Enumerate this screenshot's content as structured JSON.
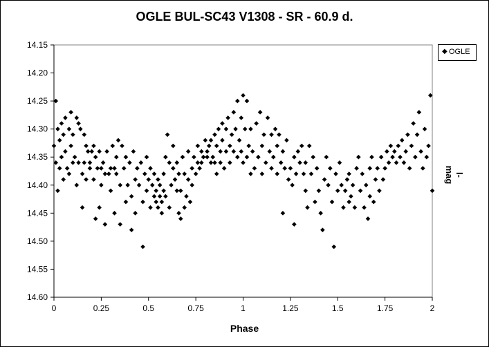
{
  "chart_data": {
    "type": "scatter",
    "title": "OGLE BUL-SC43  V1308 - SR - 60.9 d.",
    "xlabel": "Phase",
    "ylabel": "I-mag",
    "xlim": [
      0,
      2
    ],
    "ylim": [
      14.15,
      14.6
    ],
    "y_inverted": true,
    "xticks": [
      "0",
      "0.25",
      "0.5",
      "0.75",
      "1",
      "1.25",
      "1.5",
      "1.75",
      "2"
    ],
    "yticks": [
      "14.15",
      "14.20",
      "14.25",
      "14.30",
      "14.35",
      "14.40",
      "14.45",
      "14.50",
      "14.55",
      "14.60"
    ],
    "grid": false,
    "legend_position": "top-right",
    "series": [
      {
        "name": "OGLE",
        "marker": "diamond",
        "color": "#000000",
        "points": [
          [
            0.0,
            14.33
          ],
          [
            0.01,
            14.25
          ],
          [
            0.01,
            14.36
          ],
          [
            0.02,
            14.3
          ],
          [
            0.02,
            14.41
          ],
          [
            0.03,
            14.32
          ],
          [
            0.03,
            14.37
          ],
          [
            0.04,
            14.29
          ],
          [
            0.04,
            14.35
          ],
          [
            0.05,
            14.31
          ],
          [
            0.05,
            14.39
          ],
          [
            0.06,
            14.28
          ],
          [
            0.06,
            14.34
          ],
          [
            0.07,
            14.37
          ],
          [
            0.08,
            14.3
          ],
          [
            0.08,
            14.38
          ],
          [
            0.09,
            14.27
          ],
          [
            0.09,
            14.33
          ],
          [
            0.1,
            14.36
          ],
          [
            0.1,
            14.31
          ],
          [
            0.11,
            14.35
          ],
          [
            0.12,
            14.28
          ],
          [
            0.12,
            14.4
          ],
          [
            0.13,
            14.29
          ],
          [
            0.13,
            14.36
          ],
          [
            0.14,
            14.3
          ],
          [
            0.15,
            14.38
          ],
          [
            0.15,
            14.44
          ],
          [
            0.16,
            14.31
          ],
          [
            0.16,
            14.36
          ],
          [
            0.17,
            14.33
          ],
          [
            0.17,
            14.39
          ],
          [
            0.18,
            14.34
          ],
          [
            0.19,
            14.36
          ],
          [
            0.19,
            14.37
          ],
          [
            0.2,
            14.34
          ],
          [
            0.21,
            14.33
          ],
          [
            0.21,
            14.39
          ],
          [
            0.22,
            14.35
          ],
          [
            0.22,
            14.46
          ],
          [
            0.23,
            14.37
          ],
          [
            0.24,
            14.34
          ],
          [
            0.24,
            14.44
          ],
          [
            0.25,
            14.37
          ],
          [
            0.25,
            14.4
          ],
          [
            0.26,
            14.36
          ],
          [
            0.27,
            14.47
          ],
          [
            0.27,
            14.38
          ],
          [
            0.28,
            14.34
          ],
          [
            0.29,
            14.38
          ],
          [
            0.3,
            14.37
          ],
          [
            0.3,
            14.41
          ],
          [
            0.31,
            14.33
          ],
          [
            0.32,
            14.45
          ],
          [
            0.32,
            14.37
          ],
          [
            0.33,
            14.35
          ],
          [
            0.33,
            14.38
          ],
          [
            0.34,
            14.32
          ],
          [
            0.35,
            14.4
          ],
          [
            0.35,
            14.47
          ],
          [
            0.36,
            14.33
          ],
          [
            0.37,
            14.37
          ],
          [
            0.38,
            14.43
          ],
          [
            0.38,
            14.35
          ],
          [
            0.39,
            14.4
          ],
          [
            0.4,
            14.36
          ],
          [
            0.41,
            14.42
          ],
          [
            0.41,
            14.48
          ],
          [
            0.42,
            14.34
          ],
          [
            0.43,
            14.39
          ],
          [
            0.43,
            14.45
          ],
          [
            0.44,
            14.37
          ],
          [
            0.45,
            14.4
          ],
          [
            0.46,
            14.36
          ],
          [
            0.47,
            14.43
          ],
          [
            0.47,
            14.51
          ],
          [
            0.48,
            14.38
          ],
          [
            0.49,
            14.41
          ],
          [
            0.49,
            14.35
          ],
          [
            0.5,
            14.39
          ],
          [
            0.51,
            14.44
          ],
          [
            0.51,
            14.37
          ],
          [
            0.52,
            14.4
          ],
          [
            0.53,
            14.42
          ],
          [
            0.53,
            14.38
          ],
          [
            0.54,
            14.43
          ],
          [
            0.54,
            14.41
          ],
          [
            0.55,
            14.39
          ],
          [
            0.55,
            14.44
          ],
          [
            0.56,
            14.42
          ],
          [
            0.56,
            14.4
          ],
          [
            0.57,
            14.45
          ],
          [
            0.57,
            14.43
          ],
          [
            0.58,
            14.41
          ],
          [
            0.58,
            14.38
          ],
          [
            0.59,
            14.35
          ],
          [
            0.59,
            14.42
          ],
          [
            0.6,
            14.31
          ],
          [
            0.61,
            14.36
          ],
          [
            0.61,
            14.44
          ],
          [
            0.62,
            14.4
          ],
          [
            0.63,
            14.37
          ],
          [
            0.63,
            14.33
          ],
          [
            0.64,
            14.39
          ],
          [
            0.65,
            14.41
          ],
          [
            0.65,
            14.36
          ],
          [
            0.66,
            14.45
          ],
          [
            0.66,
            14.38
          ],
          [
            0.67,
            14.46
          ],
          [
            0.67,
            14.41
          ],
          [
            0.68,
            14.35
          ],
          [
            0.69,
            14.44
          ],
          [
            0.69,
            14.38
          ],
          [
            0.7,
            14.42
          ],
          [
            0.71,
            14.39
          ],
          [
            0.71,
            14.34
          ],
          [
            0.72,
            14.43
          ],
          [
            0.73,
            14.37
          ],
          [
            0.73,
            14.4
          ],
          [
            0.74,
            14.35
          ],
          [
            0.75,
            14.38
          ],
          [
            0.76,
            14.36
          ],
          [
            0.76,
            14.33
          ],
          [
            0.77,
            14.37
          ],
          [
            0.78,
            14.34
          ],
          [
            0.78,
            14.36
          ],
          [
            0.79,
            14.35
          ],
          [
            0.8,
            14.32
          ],
          [
            0.81,
            14.34
          ],
          [
            0.81,
            14.35
          ],
          [
            0.82,
            14.33
          ],
          [
            0.83,
            14.36
          ],
          [
            0.83,
            14.32
          ],
          [
            0.84,
            14.35
          ],
          [
            0.85,
            14.31
          ],
          [
            0.85,
            14.36
          ],
          [
            0.86,
            14.33
          ],
          [
            0.86,
            14.38
          ],
          [
            0.87,
            14.3
          ],
          [
            0.88,
            14.34
          ],
          [
            0.88,
            14.36
          ],
          [
            0.89,
            14.29
          ],
          [
            0.89,
            14.32
          ],
          [
            0.9,
            14.37
          ],
          [
            0.91,
            14.3
          ],
          [
            0.91,
            14.34
          ],
          [
            0.92,
            14.28
          ],
          [
            0.93,
            14.33
          ],
          [
            0.93,
            14.36
          ],
          [
            0.94,
            14.31
          ],
          [
            0.95,
            14.27
          ],
          [
            0.95,
            14.34
          ],
          [
            0.96,
            14.3
          ],
          [
            0.97,
            14.35
          ],
          [
            0.97,
            14.25
          ],
          [
            0.98,
            14.32
          ],
          [
            0.99,
            14.34
          ],
          [
            0.99,
            14.28
          ],
          [
            1.0,
            14.24
          ],
          [
            1.0,
            14.36
          ],
          [
            1.01,
            14.3
          ],
          [
            1.02,
            14.35
          ],
          [
            1.02,
            14.25
          ],
          [
            1.03,
            14.33
          ],
          [
            1.04,
            14.38
          ],
          [
            1.04,
            14.3
          ],
          [
            1.05,
            14.34
          ],
          [
            1.06,
            14.37
          ],
          [
            1.07,
            14.29
          ],
          [
            1.08,
            14.35
          ],
          [
            1.09,
            14.27
          ],
          [
            1.1,
            14.33
          ],
          [
            1.1,
            14.38
          ],
          [
            1.11,
            14.31
          ],
          [
            1.12,
            14.36
          ],
          [
            1.13,
            14.28
          ],
          [
            1.14,
            14.34
          ],
          [
            1.15,
            14.37
          ],
          [
            1.15,
            14.31
          ],
          [
            1.16,
            14.35
          ],
          [
            1.17,
            14.3
          ],
          [
            1.18,
            14.33
          ],
          [
            1.18,
            14.38
          ],
          [
            1.19,
            14.31
          ],
          [
            1.2,
            14.36
          ],
          [
            1.21,
            14.34
          ],
          [
            1.21,
            14.45
          ],
          [
            1.22,
            14.37
          ],
          [
            1.23,
            14.32
          ],
          [
            1.24,
            14.39
          ],
          [
            1.25,
            14.37
          ],
          [
            1.26,
            14.4
          ],
          [
            1.27,
            14.35
          ],
          [
            1.27,
            14.47
          ],
          [
            1.28,
            14.38
          ],
          [
            1.29,
            14.34
          ],
          [
            1.3,
            14.36
          ],
          [
            1.31,
            14.33
          ],
          [
            1.32,
            14.38
          ],
          [
            1.33,
            14.41
          ],
          [
            1.33,
            14.36
          ],
          [
            1.34,
            14.44
          ],
          [
            1.35,
            14.33
          ],
          [
            1.36,
            14.38
          ],
          [
            1.37,
            14.35
          ],
          [
            1.38,
            14.43
          ],
          [
            1.39,
            14.37
          ],
          [
            1.4,
            14.41
          ],
          [
            1.41,
            14.45
          ],
          [
            1.42,
            14.48
          ],
          [
            1.43,
            14.39
          ],
          [
            1.44,
            14.35
          ],
          [
            1.45,
            14.4
          ],
          [
            1.46,
            14.37
          ],
          [
            1.47,
            14.43
          ],
          [
            1.48,
            14.51
          ],
          [
            1.49,
            14.38
          ],
          [
            1.5,
            14.41
          ],
          [
            1.51,
            14.36
          ],
          [
            1.52,
            14.4
          ],
          [
            1.53,
            14.44
          ],
          [
            1.54,
            14.41
          ],
          [
            1.55,
            14.39
          ],
          [
            1.56,
            14.43
          ],
          [
            1.56,
            14.38
          ],
          [
            1.57,
            14.42
          ],
          [
            1.58,
            14.4
          ],
          [
            1.59,
            14.44
          ],
          [
            1.6,
            14.37
          ],
          [
            1.61,
            14.35
          ],
          [
            1.62,
            14.41
          ],
          [
            1.63,
            14.38
          ],
          [
            1.64,
            14.44
          ],
          [
            1.65,
            14.4
          ],
          [
            1.66,
            14.46
          ],
          [
            1.67,
            14.37
          ],
          [
            1.67,
            14.42
          ],
          [
            1.68,
            14.35
          ],
          [
            1.69,
            14.43
          ],
          [
            1.7,
            14.39
          ],
          [
            1.71,
            14.37
          ],
          [
            1.72,
            14.41
          ],
          [
            1.73,
            14.35
          ],
          [
            1.74,
            14.39
          ],
          [
            1.75,
            14.37
          ],
          [
            1.76,
            14.34
          ],
          [
            1.77,
            14.36
          ],
          [
            1.78,
            14.33
          ],
          [
            1.79,
            14.35
          ],
          [
            1.8,
            14.34
          ],
          [
            1.81,
            14.36
          ],
          [
            1.82,
            14.33
          ],
          [
            1.83,
            14.35
          ],
          [
            1.84,
            14.32
          ],
          [
            1.85,
            14.36
          ],
          [
            1.86,
            14.34
          ],
          [
            1.87,
            14.31
          ],
          [
            1.88,
            14.37
          ],
          [
            1.89,
            14.33
          ],
          [
            1.9,
            14.29
          ],
          [
            1.91,
            14.35
          ],
          [
            1.92,
            14.31
          ],
          [
            1.93,
            14.27
          ],
          [
            1.94,
            14.34
          ],
          [
            1.95,
            14.37
          ],
          [
            1.96,
            14.3
          ],
          [
            1.97,
            14.35
          ],
          [
            1.98,
            14.33
          ],
          [
            1.99,
            14.24
          ],
          [
            2.0,
            14.41
          ]
        ]
      }
    ]
  }
}
